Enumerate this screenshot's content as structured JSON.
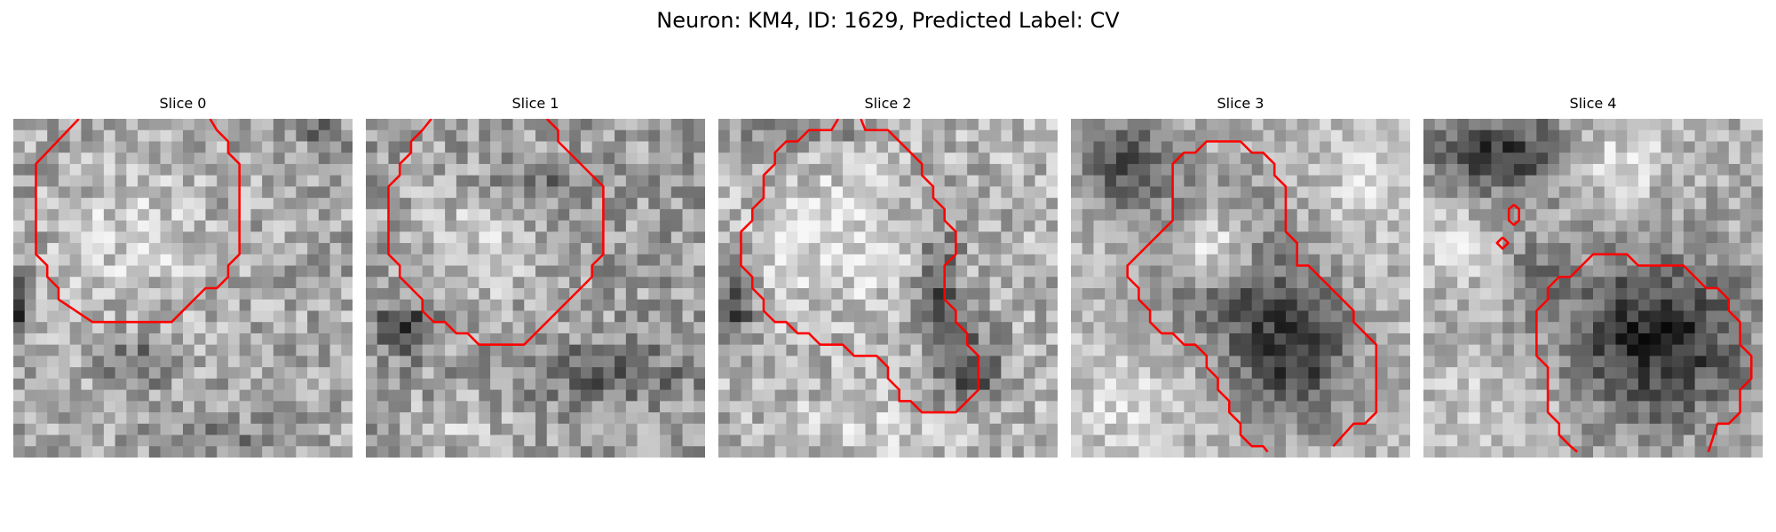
{
  "figure": {
    "title": "Neuron: KM4, ID: 1629, Predicted Label: CV"
  },
  "contour_color": "#ff0000",
  "panels": [
    {
      "title": "Slice 0",
      "image": {
        "grid": 30,
        "seed": 11,
        "base": 0.66,
        "blobs": [
          {
            "cx": 10.5,
            "cy": 10.5,
            "r": 6.5,
            "amp": 0.16
          },
          {
            "cx": 11.0,
            "cy": 21.5,
            "rx": 3.0,
            "ry": 2.0,
            "amp": -0.28
          },
          {
            "cx": 0.2,
            "cy": 16.5,
            "rx": 0.9,
            "ry": 3.0,
            "amp": -0.55
          },
          {
            "cx": 27.5,
            "cy": 1.5,
            "r": 2.0,
            "amp": -0.22
          },
          {
            "cx": 18.0,
            "cy": 28.0,
            "rx": 5.0,
            "ry": 1.6,
            "amp": -0.18
          }
        ],
        "noise": 0.2
      },
      "contours": [
        [
          [
            5.8,
            0
          ],
          [
            2,
            4
          ],
          [
            2,
            12
          ],
          [
            3,
            13
          ],
          [
            3,
            14
          ],
          [
            4,
            15
          ],
          [
            4,
            16
          ],
          [
            7,
            18
          ],
          [
            14,
            18
          ],
          [
            17,
            15
          ],
          [
            18,
            15
          ],
          [
            19,
            14
          ],
          [
            19,
            13
          ],
          [
            20,
            12
          ],
          [
            20,
            4
          ],
          [
            19,
            3
          ],
          [
            19,
            2
          ],
          [
            18,
            1
          ],
          [
            17.4,
            0
          ]
        ]
      ]
    },
    {
      "title": "Slice 1",
      "image": {
        "grid": 30,
        "seed": 23,
        "base": 0.62,
        "blobs": [
          {
            "cx": 9.5,
            "cy": 11.5,
            "r": 6.0,
            "amp": 0.18
          },
          {
            "cx": 3.5,
            "cy": 18.5,
            "rx": 2.6,
            "ry": 2.2,
            "amp": -0.45
          },
          {
            "cx": 15.0,
            "cy": 5.5,
            "rx": 4.0,
            "ry": 1.5,
            "amp": -0.22
          },
          {
            "cx": 21.0,
            "cy": 22.5,
            "rx": 7.0,
            "ry": 2.2,
            "amp": -0.28
          },
          {
            "cx": 8.0,
            "cy": 27.0,
            "rx": 5.0,
            "ry": 2.0,
            "amp": 0.16
          }
        ],
        "noise": 0.2
      },
      "contours": [
        [
          [
            5.8,
            0
          ],
          [
            5,
            1
          ],
          [
            4,
            2
          ],
          [
            4,
            3
          ],
          [
            3,
            4
          ],
          [
            3,
            5
          ],
          [
            2,
            6
          ],
          [
            2,
            12
          ],
          [
            3,
            13
          ],
          [
            3,
            14
          ],
          [
            5,
            16
          ],
          [
            5,
            17
          ],
          [
            6,
            18
          ],
          [
            7,
            18
          ],
          [
            8,
            19
          ],
          [
            9,
            19
          ],
          [
            10,
            20
          ],
          [
            14,
            20
          ],
          [
            18,
            16
          ],
          [
            19,
            15
          ],
          [
            20,
            14
          ],
          [
            20,
            13
          ],
          [
            21,
            12
          ],
          [
            21,
            6
          ],
          [
            17,
            2
          ],
          [
            17,
            1
          ],
          [
            16,
            0
          ]
        ]
      ]
    },
    {
      "title": "Slice 2",
      "image": {
        "grid": 30,
        "seed": 37,
        "base": 0.7,
        "blobs": [
          {
            "cx": 10.5,
            "cy": 11.0,
            "r": 6.5,
            "amp": 0.18
          },
          {
            "cx": 19.5,
            "cy": 14.5,
            "rx": 2.0,
            "ry": 5.0,
            "amp": -0.38
          },
          {
            "cx": 22.0,
            "cy": 22.0,
            "rx": 3.0,
            "ry": 3.5,
            "amp": -0.42
          },
          {
            "cx": 1.5,
            "cy": 16.0,
            "rx": 1.5,
            "ry": 3.5,
            "amp": -0.5
          },
          {
            "cx": 7.0,
            "cy": 1.5,
            "rx": 5.0,
            "ry": 1.5,
            "amp": -0.2
          },
          {
            "cx": 12.0,
            "cy": 27.0,
            "rx": 8.0,
            "ry": 3.0,
            "amp": 0.1
          }
        ],
        "noise": 0.2
      },
      "contours": [
        [
          [
            10.6,
            0
          ],
          [
            10,
            1
          ],
          [
            8,
            1
          ],
          [
            7,
            2
          ],
          [
            6,
            2
          ],
          [
            5,
            3
          ],
          [
            5,
            4
          ],
          [
            4,
            5
          ],
          [
            4,
            7
          ],
          [
            3,
            8
          ],
          [
            3,
            9
          ],
          [
            2,
            10
          ],
          [
            2,
            13
          ],
          [
            3,
            14
          ],
          [
            3,
            15
          ],
          [
            4,
            16
          ],
          [
            4,
            17
          ],
          [
            5,
            18
          ],
          [
            6,
            18
          ],
          [
            7,
            19
          ],
          [
            8,
            19
          ],
          [
            9,
            20
          ],
          [
            11,
            20
          ],
          [
            12,
            21
          ],
          [
            14,
            21
          ],
          [
            15,
            22
          ],
          [
            15,
            23
          ],
          [
            16,
            24
          ],
          [
            16,
            25
          ],
          [
            17,
            25
          ],
          [
            18,
            26
          ],
          [
            21,
            26
          ],
          [
            22,
            25
          ],
          [
            23,
            24
          ],
          [
            23,
            21
          ],
          [
            22,
            20
          ],
          [
            22,
            19
          ],
          [
            21,
            18
          ],
          [
            21,
            17
          ],
          [
            20,
            16
          ],
          [
            20,
            13
          ],
          [
            21,
            12
          ],
          [
            21,
            10
          ],
          [
            20,
            9
          ],
          [
            20,
            8
          ],
          [
            19,
            7
          ],
          [
            19,
            6
          ],
          [
            18,
            5
          ],
          [
            18,
            4
          ],
          [
            16,
            2
          ],
          [
            15,
            1
          ],
          [
            13,
            1
          ],
          [
            12.6,
            0
          ]
        ]
      ]
    },
    {
      "title": "Slice 3",
      "image": {
        "grid": 30,
        "seed": 53,
        "base": 0.72,
        "blobs": [
          {
            "cx": 13.0,
            "cy": 12.0,
            "rx": 6.0,
            "ry": 6.5,
            "amp": -0.38
          },
          {
            "cx": 12.5,
            "cy": 11.5,
            "rx": 3.8,
            "ry": 3.2,
            "amp": 0.55
          },
          {
            "cx": 19.5,
            "cy": 20.5,
            "rx": 5.5,
            "ry": 6.5,
            "amp": -0.5
          },
          {
            "cx": 5.0,
            "cy": 4.0,
            "rx": 4.0,
            "ry": 3.5,
            "amp": -0.42
          },
          {
            "cx": 26.0,
            "cy": 5.0,
            "rx": 4.0,
            "ry": 5.0,
            "amp": 0.12
          },
          {
            "cx": 4.5,
            "cy": 25.5,
            "rx": 5.0,
            "ry": 4.0,
            "amp": 0.12
          }
        ],
        "noise": 0.16
      },
      "contours": [
        [
          [
            17.4,
            29.5
          ],
          [
            17,
            29
          ],
          [
            16,
            29
          ],
          [
            15,
            28
          ],
          [
            15,
            27
          ],
          [
            14,
            26
          ],
          [
            14,
            25
          ],
          [
            13,
            24
          ],
          [
            13,
            23
          ],
          [
            12,
            22
          ],
          [
            12,
            21
          ],
          [
            11,
            20
          ],
          [
            10,
            20
          ],
          [
            9,
            19
          ],
          [
            8,
            19
          ],
          [
            7,
            18
          ],
          [
            7,
            17
          ],
          [
            6,
            16
          ],
          [
            6,
            15
          ],
          [
            5,
            14
          ],
          [
            5,
            13
          ],
          [
            9,
            9
          ],
          [
            9,
            4
          ],
          [
            10,
            3
          ],
          [
            11,
            3
          ],
          [
            12,
            2
          ],
          [
            15,
            2
          ],
          [
            16,
            3
          ],
          [
            17,
            3
          ],
          [
            18,
            4
          ],
          [
            18,
            5
          ],
          [
            19,
            6
          ],
          [
            19,
            10
          ],
          [
            20,
            11
          ],
          [
            20,
            13
          ],
          [
            21,
            13
          ],
          [
            22,
            14
          ],
          [
            23,
            15
          ],
          [
            24,
            16
          ],
          [
            25,
            17
          ],
          [
            25,
            18
          ],
          [
            26,
            19
          ],
          [
            27,
            20
          ],
          [
            27,
            26
          ],
          [
            26,
            27
          ],
          [
            25,
            27
          ],
          [
            23.2,
            29
          ]
        ]
      ]
    },
    {
      "title": "Slice 4",
      "image": {
        "grid": 30,
        "seed": 71,
        "base": 0.68,
        "blobs": [
          {
            "cx": 20.5,
            "cy": 19.5,
            "rx": 7.5,
            "ry": 7.0,
            "amp": -0.55
          },
          {
            "cx": 7.0,
            "cy": 3.0,
            "rx": 6.0,
            "ry": 3.5,
            "amp": -0.45
          },
          {
            "cx": 17.5,
            "cy": 4.0,
            "rx": 4.0,
            "ry": 3.5,
            "amp": 0.2
          },
          {
            "cx": 2.5,
            "cy": 11.5,
            "rx": 3.0,
            "ry": 3.5,
            "amp": 0.18
          },
          {
            "cx": 6.5,
            "cy": 26.0,
            "rx": 6.0,
            "ry": 3.5,
            "amp": 0.14
          },
          {
            "cx": 10.0,
            "cy": 14.0,
            "rx": 2.5,
            "ry": 3.0,
            "amp": -0.2
          }
        ],
        "noise": 0.17
      },
      "contours": [
        [
          [
            13.6,
            29.5
          ],
          [
            13,
            29
          ],
          [
            12,
            28
          ],
          [
            12,
            27
          ],
          [
            11,
            26
          ],
          [
            11,
            22
          ],
          [
            10,
            21
          ],
          [
            10,
            17
          ],
          [
            11,
            16
          ],
          [
            11,
            15
          ],
          [
            12,
            14
          ],
          [
            13,
            14
          ],
          [
            14,
            13
          ],
          [
            15,
            12
          ],
          [
            18,
            12
          ],
          [
            19,
            13
          ],
          [
            23,
            13
          ],
          [
            24,
            14
          ],
          [
            25,
            15
          ],
          [
            26,
            15
          ],
          [
            27,
            16
          ],
          [
            27,
            17
          ],
          [
            28,
            18
          ],
          [
            28,
            20
          ],
          [
            29,
            21
          ],
          [
            29,
            23
          ],
          [
            28,
            24
          ],
          [
            28,
            26
          ],
          [
            27,
            27
          ],
          [
            26,
            27
          ],
          [
            25.2,
            29.5
          ]
        ],
        [
          [
            8,
            7.6
          ],
          [
            8.45,
            8
          ],
          [
            8.45,
            9
          ],
          [
            8,
            9.4
          ],
          [
            7.55,
            9
          ],
          [
            7.55,
            8
          ],
          [
            8,
            7.6
          ]
        ],
        [
          [
            7,
            10.5
          ],
          [
            7.5,
            11
          ],
          [
            7,
            11.5
          ],
          [
            6.5,
            11
          ],
          [
            7,
            10.5
          ]
        ]
      ]
    }
  ]
}
